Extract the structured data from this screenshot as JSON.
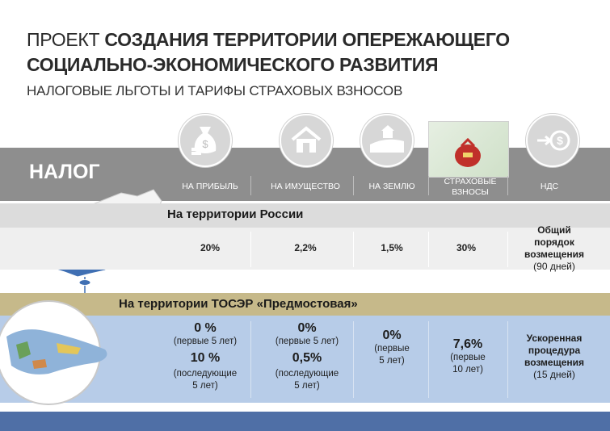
{
  "title": {
    "prefix": "ПРОЕКТ",
    "bold_line1": "СОЗДАНИЯ ТЕРРИТОРИИ ОПЕРЕЖАЮЩЕГО",
    "bold_line2": "СОЦИАЛЬНО-ЭКОНОМИЧЕСКОГО РАЗВИТИЯ"
  },
  "subtitle": "НАЛОГОВЫЕ ЛЬГОТЫ  И  ТАРИФЫ СТРАХОВЫХ ВЗНОСОВ",
  "tax_label": "НАЛОГ",
  "columns": [
    "НА ПРИБЫЛЬ",
    "НА ИМУЩЕСТВО",
    "НА ЗЕМЛЮ",
    "СТРАХОВЫЕ ВЗНОСЫ",
    "НДС"
  ],
  "icons": [
    "money-bag-icon",
    "house-icon",
    "land-icon",
    "insurance-bag-icon",
    "vat-icon"
  ],
  "russia": {
    "label": "На территории России",
    "values": [
      "20%",
      "2,2%",
      "1,5%",
      "30%"
    ],
    "vat_line1": "Общий",
    "vat_line2": "порядок",
    "vat_line3": "возмещения",
    "vat_line4": "(90 дней)"
  },
  "tosr": {
    "label": "На территории ТОСЭР «Предмостовая»",
    "profit": {
      "v1": "0 %",
      "n1": "(первые 5 лет)",
      "v2": "10 %",
      "n2a": "(последующие",
      "n2b": "5 лет)"
    },
    "property": {
      "v1": "0%",
      "n1": "(первые 5 лет)",
      "v2": "0,5%",
      "n2a": "(последующие",
      "n2b": "5 лет)"
    },
    "land": {
      "v1": "0%",
      "n1a": "(первые",
      "n1b": "5 лет)"
    },
    "insurance": {
      "v1": "7,6%",
      "n1a": "(первые",
      "n1b": "10 лет)"
    },
    "vat": {
      "l1": "Ускоренная",
      "l2": "процедура",
      "l3": "возмещения",
      "l4": "(15 дней)"
    }
  },
  "colors": {
    "grey_band": "#8e8e8e",
    "russia_row": "#dcdcdc",
    "tosr_row": "#c6b98a",
    "blue_row": "#b7cce8",
    "bottom_bar": "#4f6fa6",
    "map_blue": "#3f6fb3"
  }
}
